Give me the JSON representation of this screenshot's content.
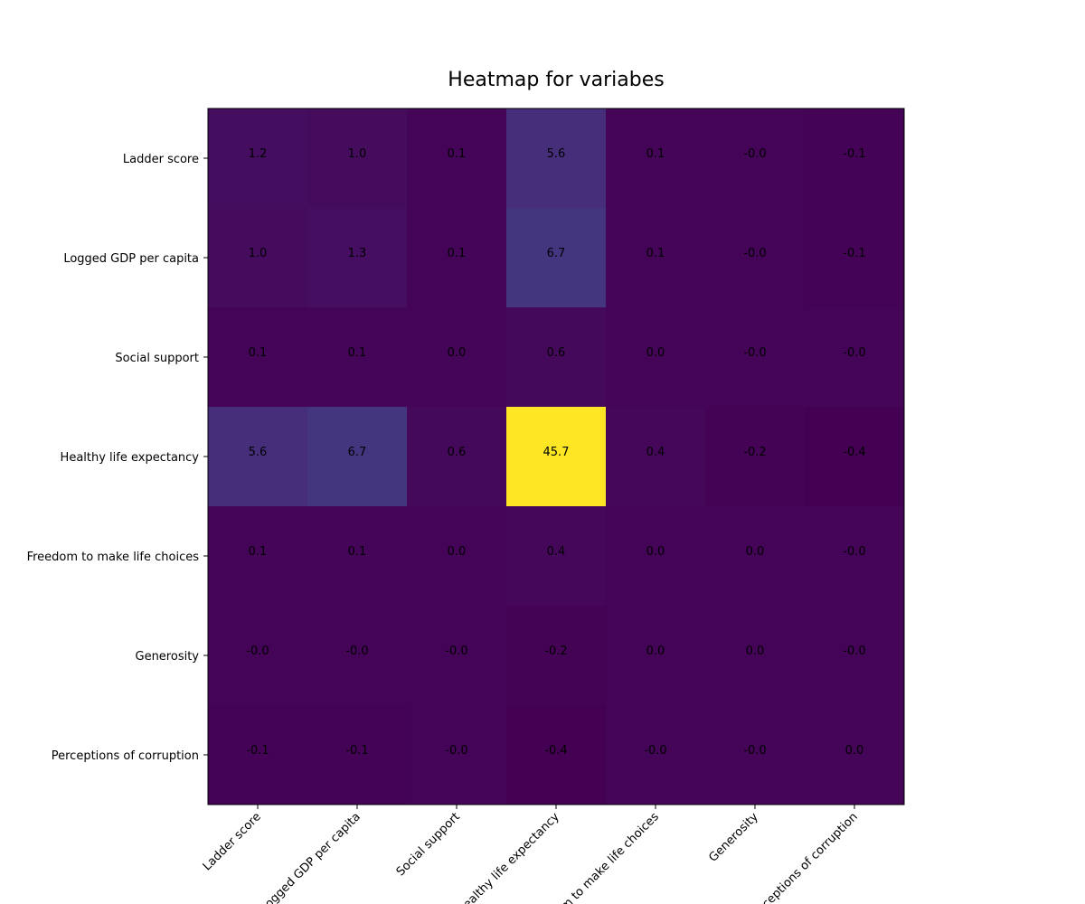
{
  "chart_data": {
    "type": "heatmap",
    "title": "Heatmap for variabes",
    "xlabel": "",
    "ylabel": "",
    "rows": [
      "Ladder score",
      "Logged GDP per capita",
      "Social support",
      "Healthy life expectancy",
      "Freedom to make life choices",
      "Generosity",
      "Perceptions of corruption"
    ],
    "columns": [
      "Ladder score",
      "Logged GDP per capita",
      "Social support",
      "Healthy life expectancy",
      "Freedom to make life choices",
      "Generosity",
      "Perceptions of corruption"
    ],
    "values": [
      [
        1.2,
        1.0,
        0.1,
        5.6,
        0.1,
        -0.0,
        -0.1
      ],
      [
        1.0,
        1.3,
        0.1,
        6.7,
        0.1,
        -0.0,
        -0.1
      ],
      [
        0.1,
        0.1,
        0.0,
        0.6,
        0.0,
        -0.0,
        -0.0
      ],
      [
        5.6,
        6.7,
        0.6,
        45.7,
        0.4,
        -0.2,
        -0.4
      ],
      [
        0.1,
        0.1,
        0.0,
        0.4,
        0.0,
        0.0,
        -0.0
      ],
      [
        -0.0,
        -0.0,
        -0.0,
        -0.2,
        0.0,
        0.0,
        -0.0
      ],
      [
        -0.1,
        -0.1,
        -0.0,
        -0.4,
        -0.0,
        -0.0,
        0.0
      ]
    ],
    "cell_labels": [
      [
        "1.2",
        "1.0",
        "0.1",
        "5.6",
        "0.1",
        "-0.0",
        "-0.1"
      ],
      [
        "1.0",
        "1.3",
        "0.1",
        "6.7",
        "0.1",
        "-0.0",
        "-0.1"
      ],
      [
        "0.1",
        "0.1",
        "0.0",
        "0.6",
        "0.0",
        "-0.0",
        "-0.0"
      ],
      [
        "5.6",
        "6.7",
        "0.6",
        "45.7",
        "0.4",
        "-0.2",
        "-0.4"
      ],
      [
        "0.1",
        "0.1",
        "0.0",
        "0.4",
        "0.0",
        "0.0",
        "-0.0"
      ],
      [
        "-0.0",
        "-0.0",
        "-0.0",
        "-0.2",
        "0.0",
        "0.0",
        "-0.0"
      ],
      [
        "-0.1",
        "-0.1",
        "-0.0",
        "-0.4",
        "-0.0",
        "-0.0",
        "0.0"
      ]
    ],
    "colormap": "viridis",
    "colormap_stops": [
      "#440154",
      "#482878",
      "#3e4989",
      "#31688e",
      "#26828e",
      "#1f9e89",
      "#35b779",
      "#6ece58",
      "#b5de2b",
      "#fde725"
    ],
    "grid": false,
    "legend": "none"
  }
}
